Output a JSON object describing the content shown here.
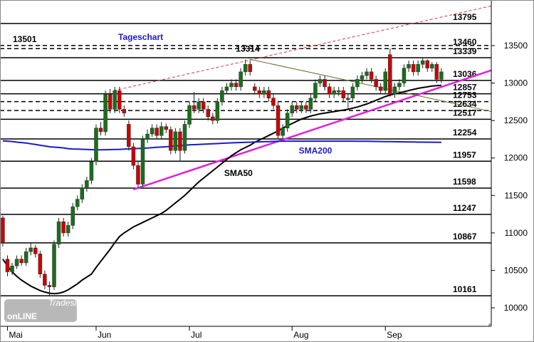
{
  "chart_data": {
    "type": "candlestick",
    "title": "Tageschart",
    "categories": [
      null,
      "Mai",
      null,
      null,
      null,
      null,
      null,
      null,
      null,
      null,
      null,
      null,
      null,
      null,
      null,
      null,
      null,
      null,
      null,
      null,
      "Jun",
      null,
      null,
      null,
      null,
      null,
      null,
      null,
      null,
      null,
      null,
      null,
      null,
      null,
      null,
      null,
      null,
      null,
      null,
      null,
      "Jul",
      null,
      null,
      null,
      null,
      null,
      null,
      null,
      null,
      null,
      null,
      null,
      null,
      null,
      null,
      null,
      null,
      null,
      null,
      null,
      null,
      null,
      "Aug",
      null,
      null,
      null,
      null,
      null,
      null,
      null,
      null,
      null,
      null,
      null,
      null,
      null,
      null,
      null,
      null,
      null,
      null,
      null,
      "Sep",
      null,
      null,
      null,
      null,
      null,
      null,
      null,
      null,
      null,
      null,
      null,
      null
    ],
    "ohlc": [
      [
        11200,
        11230,
        10820,
        10870
      ],
      [
        10650,
        10700,
        10420,
        10480
      ],
      [
        10480,
        10600,
        10440,
        10560
      ],
      [
        10560,
        10700,
        10520,
        10650
      ],
      [
        10650,
        10700,
        10560,
        10600
      ],
      [
        10600,
        10800,
        10560,
        10750
      ],
      [
        10750,
        10860,
        10700,
        10800
      ],
      [
        10800,
        10840,
        10670,
        10720
      ],
      [
        10720,
        10760,
        10400,
        10450
      ],
      [
        10450,
        10500,
        10250,
        10300
      ],
      [
        10300,
        10350,
        10160,
        10280
      ],
      [
        10280,
        10900,
        10240,
        10850
      ],
      [
        10850,
        11200,
        10800,
        11150
      ],
      [
        11150,
        11200,
        10950,
        11000
      ],
      [
        11000,
        11150,
        10950,
        11100
      ],
      [
        11100,
        11400,
        11050,
        11350
      ],
      [
        11350,
        11500,
        11300,
        11450
      ],
      [
        11450,
        11650,
        11400,
        11600
      ],
      [
        11600,
        11750,
        11550,
        11700
      ],
      [
        11700,
        12000,
        11650,
        11950
      ],
      [
        11950,
        12450,
        11900,
        12400
      ],
      [
        12400,
        12480,
        12300,
        12350
      ],
      [
        12350,
        12900,
        12300,
        12850
      ],
      [
        12850,
        12920,
        12600,
        12650
      ],
      [
        12650,
        12950,
        12600,
        12900
      ],
      [
        12900,
        12950,
        12600,
        12650
      ],
      [
        12650,
        12700,
        12550,
        12600
      ],
      [
        12450,
        12500,
        12100,
        12150
      ],
      [
        12150,
        12200,
        11850,
        11900
      ],
      [
        11900,
        11950,
        11598,
        11650
      ],
      [
        11650,
        12300,
        11620,
        12250
      ],
      [
        12250,
        12380,
        12200,
        12320
      ],
      [
        12320,
        12450,
        12280,
        12400
      ],
      [
        12400,
        12450,
        12250,
        12300
      ],
      [
        12300,
        12480,
        12260,
        12420
      ],
      [
        12420,
        12460,
        12330,
        12380
      ],
      [
        12380,
        12420,
        12050,
        12100
      ],
      [
        12100,
        12400,
        12060,
        12350
      ],
      [
        12350,
        12400,
        11950,
        12100
      ],
      [
        12100,
        12500,
        12060,
        12450
      ],
      [
        12450,
        12750,
        12400,
        12700
      ],
      [
        12700,
        12880,
        12600,
        12650
      ],
      [
        12650,
        12800,
        12600,
        12750
      ],
      [
        12750,
        12800,
        12600,
        12650
      ],
      [
        12650,
        12700,
        12500,
        12550
      ],
      [
        12550,
        12600,
        12450,
        12500
      ],
      [
        12500,
        12800,
        12460,
        12750
      ],
      [
        12750,
        12950,
        12700,
        12900
      ],
      [
        12900,
        13000,
        12850,
        12950
      ],
      [
        12950,
        13050,
        12900,
        13000
      ],
      [
        13000,
        13050,
        12900,
        12950
      ],
      [
        12950,
        13200,
        12900,
        13150
      ],
      [
        13150,
        13314,
        13100,
        13250
      ],
      [
        13250,
        13300,
        13100,
        13150
      ],
      [
        12950,
        13000,
        12850,
        12900
      ],
      [
        12900,
        12950,
        12800,
        12850
      ],
      [
        12850,
        12950,
        12800,
        12900
      ],
      [
        12900,
        12950,
        12750,
        12800
      ],
      [
        12800,
        12850,
        12650,
        12700
      ],
      [
        12700,
        12750,
        12250,
        12300
      ],
      [
        12300,
        12450,
        12250,
        12400
      ],
      [
        12400,
        12650,
        12350,
        12600
      ],
      [
        12600,
        12750,
        12550,
        12700
      ],
      [
        12700,
        12750,
        12600,
        12650
      ],
      [
        12650,
        12750,
        12600,
        12700
      ],
      [
        12700,
        12750,
        12600,
        12650
      ],
      [
        12650,
        12850,
        12600,
        12800
      ],
      [
        12800,
        13050,
        12750,
        13000
      ],
      [
        13000,
        13100,
        12950,
        13050
      ],
      [
        13050,
        13100,
        12900,
        12950
      ],
      [
        12950,
        13000,
        12800,
        12850
      ],
      [
        12850,
        12950,
        12800,
        12900
      ],
      [
        12880,
        12950,
        12830,
        12900
      ],
      [
        12900,
        12950,
        12750,
        12800
      ],
      [
        12780,
        12850,
        12650,
        12800
      ],
      [
        12800,
        13000,
        12750,
        12950
      ],
      [
        12950,
        13100,
        12900,
        13050
      ],
      [
        13050,
        13150,
        13000,
        13100
      ],
      [
        13100,
        13200,
        13050,
        13150
      ],
      [
        13150,
        13200,
        13000,
        13050
      ],
      [
        13050,
        13100,
        12900,
        12950
      ],
      [
        12950,
        13000,
        12850,
        12900
      ],
      [
        12900,
        13200,
        12850,
        13150
      ],
      [
        13380,
        13460,
        12820,
        12850
      ],
      [
        12850,
        13000,
        12800,
        12950
      ],
      [
        12950,
        13050,
        12900,
        13000
      ],
      [
        13000,
        13250,
        12950,
        13200
      ],
      [
        13200,
        13300,
        13150,
        13250
      ],
      [
        13250,
        13300,
        13100,
        13150
      ],
      [
        13150,
        13300,
        13100,
        13250
      ],
      [
        13250,
        13339,
        13200,
        13300
      ],
      [
        13300,
        13320,
        13150,
        13200
      ],
      [
        13200,
        13280,
        13150,
        13250
      ],
      [
        13250,
        13280,
        13000,
        13050
      ],
      [
        13050,
        13200,
        13000,
        13150
      ]
    ],
    "up_color": "#1a6e1a",
    "down_color": "#cc0000",
    "series": [
      {
        "name": "SMA50",
        "color": "#000000",
        "values": [
          10650,
          10560,
          10480,
          10420,
          10370,
          10330,
          10290,
          10260,
          10230,
          10210,
          10195,
          10190,
          10195,
          10210,
          10240,
          10280,
          10320,
          10370,
          10410,
          10450,
          10540,
          10620,
          10700,
          10780,
          10870,
          10950,
          11000,
          11040,
          11080,
          11110,
          11140,
          11170,
          11200,
          11230,
          11260,
          11300,
          11350,
          11400,
          11450,
          11500,
          11560,
          11620,
          11680,
          11730,
          11780,
          11830,
          11880,
          11930,
          11980,
          12030,
          12070,
          12110,
          12140,
          12170,
          12210,
          12240,
          12270,
          12300,
          12330,
          12360,
          12400,
          12430,
          12460,
          12490,
          12520,
          12540,
          12560,
          12575,
          12590,
          12600,
          12610,
          12620,
          12630,
          12640,
          12650,
          12665,
          12680,
          12700,
          12720,
          12745,
          12770,
          12795,
          12820,
          12840,
          12855,
          12870,
          12885,
          12900,
          12915,
          12930,
          12940,
          12950,
          12960,
          12965,
          12970
        ]
      },
      {
        "name": "SMA200",
        "color": "#1a1acc",
        "values": [
          12230,
          12225,
          12220,
          12212,
          12206,
          12200,
          12190,
          12180,
          12170,
          12160,
          12150,
          12145,
          12140,
          12135,
          12125,
          12120,
          12118,
          12116,
          12114,
          12112,
          12110,
          12110,
          12111,
          12112,
          12114,
          12115,
          12118,
          12121,
          12124,
          12127,
          12130,
          12134,
          12138,
          12142,
          12146,
          12150,
          12155,
          12160,
          12165,
          12170,
          12175,
          12178,
          12181,
          12184,
          12187,
          12190,
          12193,
          12196,
          12199,
          12202,
          12205,
          12207,
          12209,
          12211,
          12213,
          12215,
          12217,
          12219,
          12221,
          12223,
          12225,
          12225,
          12225,
          12225,
          12225,
          12225,
          12225,
          12225,
          12225,
          12225,
          12225,
          12225,
          12225,
          12225,
          12225,
          12225,
          12224,
          12224,
          12223,
          12222,
          12221,
          12220,
          12219,
          12218,
          12217,
          12216,
          12215,
          12214,
          12213,
          12212,
          12212,
          12211,
          12211,
          12210,
          12210
        ]
      }
    ],
    "trendlines": [
      {
        "color": "#e020e0",
        "dashed": false,
        "width": 2.5,
        "x": [
          28,
          104.7
        ],
        "y": [
          11580,
          13170
        ]
      },
      {
        "color": "#e03030",
        "dashed": true,
        "width": 1,
        "x": [
          23.8,
          104.7
        ],
        "y": [
          12900,
          14030
        ]
      },
      {
        "color": "#6b6b2a",
        "dashed": false,
        "width": 1,
        "x": [
          52.8,
          104.7
        ],
        "y": [
          13320,
          12620
        ]
      }
    ],
    "levels": [
      {
        "value": 13795,
        "dashed": false
      },
      {
        "value": 13501,
        "dashed": true,
        "side": "left"
      },
      {
        "value": 13460,
        "dashed": true
      },
      {
        "value": 13339,
        "dashed": false
      },
      {
        "value": 13036,
        "dashed": false
      },
      {
        "value": 12857,
        "dashed": false
      },
      {
        "value": 12753,
        "dashed": true
      },
      {
        "value": 12634,
        "dashed": true
      },
      {
        "value": 12517,
        "dashed": false
      },
      {
        "value": 12254,
        "dashed": false
      },
      {
        "value": 11957,
        "dashed": false
      },
      {
        "value": 11598,
        "dashed": false
      },
      {
        "value": 11247,
        "dashed": false
      },
      {
        "value": 10867,
        "dashed": false
      },
      {
        "value": 10161,
        "dashed": false
      }
    ],
    "annotations": [
      {
        "text": "13314",
        "x": 52.5,
        "y": 13420
      },
      {
        "text": "SMA200",
        "x": 67,
        "y": 12060,
        "color": "#1a1acc"
      },
      {
        "text": "SMA50",
        "x": 50.5,
        "y": 11760,
        "color": "#000000"
      }
    ],
    "logo": {
      "small": "Tradesignal",
      "big": "onLINE"
    },
    "xlim": [
      -0.6,
      104.7
    ],
    "ylim": [
      9753,
      14109
    ],
    "yticks": [
      10000,
      10500,
      11000,
      11500,
      12000,
      12500,
      13000,
      13500
    ]
  }
}
